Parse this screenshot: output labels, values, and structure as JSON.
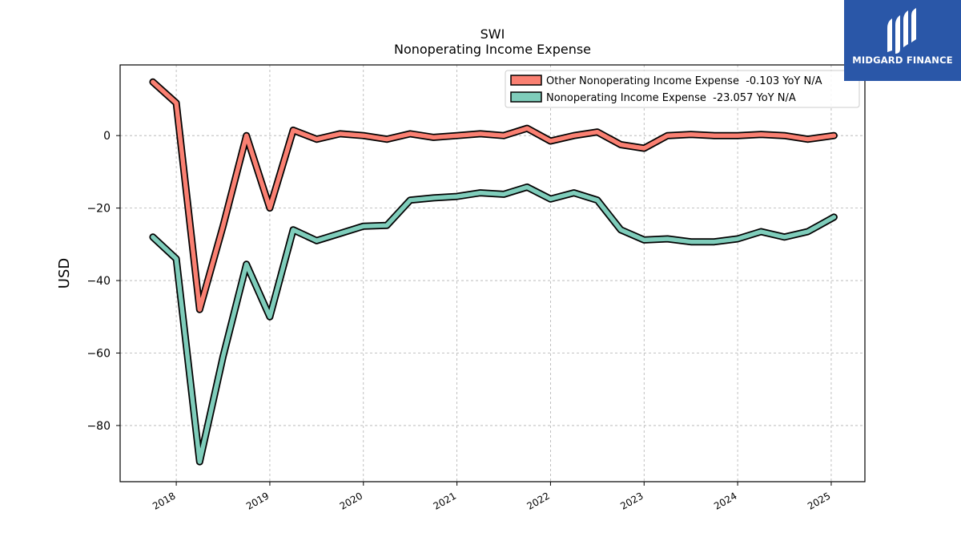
{
  "chart_data": {
    "type": "line",
    "title": "SWI",
    "subtitle": "Nonoperating Income Expense",
    "ylabel": "USD",
    "xlabel": "",
    "ylim": [
      -95.5,
      19.5
    ],
    "xlim": [
      2017.4,
      2025.36
    ],
    "yticks": [
      0,
      -20,
      -40,
      -60,
      -80
    ],
    "ytick_labels": [
      "0",
      "−20",
      "−40",
      "−60",
      "−80"
    ],
    "xticks": [
      2018,
      2019,
      2020,
      2021,
      2022,
      2023,
      2024,
      2025
    ],
    "xtick_labels": [
      "2018",
      "2019",
      "2020",
      "2021",
      "2022",
      "2023",
      "2024",
      "2025"
    ],
    "grid": true,
    "legend_position": "top-right",
    "x": [
      2017.75,
      2018.0,
      2018.25,
      2018.5,
      2018.75,
      2019.0,
      2019.25,
      2019.5,
      2019.75,
      2020.0,
      2020.25,
      2020.5,
      2020.75,
      2021.0,
      2021.25,
      2021.5,
      2021.75,
      2022.0,
      2022.25,
      2022.5,
      2022.75,
      2023.0,
      2023.25,
      2023.5,
      2023.75,
      2024.0,
      2024.25,
      2024.5,
      2024.75,
      2025.03
    ],
    "series": [
      {
        "name": "Other Nonoperating Income Expense  -0.103 YoY N/A",
        "color": "#fa8072",
        "values": [
          14.8,
          9.0,
          -48.0,
          -25.0,
          0.0,
          -20.0,
          1.5,
          -1.0,
          0.5,
          0.0,
          -1.0,
          0.5,
          -0.5,
          0.0,
          0.5,
          0.0,
          2.0,
          -1.5,
          0.0,
          1.0,
          -2.5,
          -3.5,
          0.0,
          0.3,
          0.0,
          0.0,
          0.3,
          0.0,
          -1.0,
          0.0
        ]
      },
      {
        "name": "Nonoperating Income Expense  -23.057 YoY N/A",
        "color": "#7fcdbb",
        "values": [
          -28.0,
          -34.0,
          -90.0,
          -61.0,
          -35.5,
          -50.0,
          -26.0,
          -29.0,
          -27.0,
          -25.0,
          -24.8,
          -17.8,
          -17.2,
          -16.8,
          -15.8,
          -16.2,
          -14.2,
          -17.5,
          -15.8,
          -17.8,
          -26.0,
          -28.8,
          -28.5,
          -29.3,
          -29.3,
          -28.5,
          -26.5,
          -28.0,
          -26.5,
          -22.5
        ]
      }
    ]
  },
  "logo": {
    "text": "MIDGARD FINANCE",
    "background": "#2a57a8"
  }
}
